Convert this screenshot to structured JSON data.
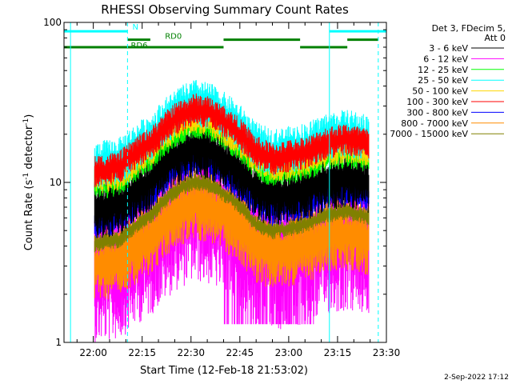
{
  "chart_data": {
    "type": "line",
    "title": "RHESSI Observing Summary Count Rates",
    "xlabel": "Start Time (12-Feb-18 21:53:02)",
    "ylabel_parts": [
      "Count Rate (s",
      "-1",
      " detector",
      "-1",
      ")"
    ],
    "y_scale": "log",
    "ylim": [
      1,
      100
    ],
    "xlim_minutes": [
      -2,
      97
    ],
    "x_ticks": [
      {
        "label": "22:00",
        "min": 7
      },
      {
        "label": "22:15",
        "min": 22
      },
      {
        "label": "22:30",
        "min": 37
      },
      {
        "label": "22:45",
        "min": 52
      },
      {
        "label": "23:00",
        "min": 67
      },
      {
        "label": "23:15",
        "min": 82
      },
      {
        "label": "23:30",
        "min": 97
      }
    ],
    "y_ticks": [
      {
        "label": "1",
        "value": 1
      },
      {
        "label": "10",
        "value": 10
      },
      {
        "label": "100",
        "value": 100
      }
    ],
    "legend_header": [
      "Det 3, FDecim 5,",
      "Att 0"
    ],
    "legend_placement": "right, outside",
    "series": [
      {
        "name": "3 - 6 keV",
        "color": "#000000",
        "mean": 9.0,
        "spread": 1.4
      },
      {
        "name": "6 - 12 keV",
        "color": "#ff00ff",
        "mean": 3.6,
        "spread": 2.2
      },
      {
        "name": "12 - 25 keV",
        "color": "#00ff00",
        "mean": 13.0,
        "spread": 1.2
      },
      {
        "name": "25 - 50 keV",
        "color": "#00ffff",
        "mean": 17.0,
        "spread": 1.3
      },
      {
        "name": "50 - 100 keV",
        "color": "#ffd700",
        "mean": 14.0,
        "spread": 1.2
      },
      {
        "name": "100 - 300 keV",
        "color": "#ff0000",
        "mean": 15.5,
        "spread": 1.2
      },
      {
        "name": "300 - 800 keV",
        "color": "#0000ff",
        "mean": 7.5,
        "spread": 1.2
      },
      {
        "name": "800 - 7000 keV",
        "color": "#ff8c00",
        "mean": 4.0,
        "spread": 1.5
      },
      {
        "name": "7000 - 15000 keV",
        "color": "#808000",
        "mean": 5.5,
        "spread": 1.1
      }
    ],
    "data_start_min": 7.4,
    "data_end_min": 91.6,
    "profile": {
      "x_min": [
        7.4,
        15,
        25,
        32,
        38,
        43,
        50,
        57,
        62,
        68,
        73,
        79,
        85,
        91.6
      ],
      "factor": [
        0.75,
        0.8,
        1.15,
        1.6,
        1.85,
        1.75,
        1.4,
        1.0,
        0.9,
        0.95,
        1.0,
        1.15,
        1.2,
        1.1
      ]
    },
    "spike": {
      "series": "25 - 50 keV",
      "min": 37.5,
      "value": 37
    },
    "gaps": [
      {
        "series": "6 - 12 keV",
        "from_min": 47,
        "to_min": 75,
        "low": 1.3
      },
      {
        "series": "800 - 7000 keV",
        "from_min": 7.4,
        "to_min": 16,
        "low": 2.3
      }
    ],
    "annotations": {
      "flag_lines": [
        {
          "label": "N",
          "color": "#00ffff",
          "value": 88,
          "segments": [
            [
              -2,
              17.5
            ],
            [
              79.5,
              97
            ]
          ]
        },
        {
          "label": "RD0",
          "color": "#008000",
          "value": 78,
          "segments": [
            [
              17.5,
              24.5
            ],
            [
              47,
              70.5
            ],
            [
              85,
              94.5
            ]
          ]
        },
        {
          "label": "RD6",
          "color": "#008000",
          "value": 70,
          "segments": [
            [
              -2,
              47
            ],
            [
              70.5,
              85
            ]
          ]
        }
      ],
      "labels": [
        {
          "text": "N",
          "min": 19,
          "value": 90,
          "color": "#00ffff"
        },
        {
          "text": "RD0",
          "min": 29,
          "value": 79,
          "color": "#008000"
        },
        {
          "text": "RD6",
          "min": 18.5,
          "value": 69,
          "color": "#008000"
        }
      ],
      "vlines": [
        {
          "min": 0,
          "color": "#00ffff",
          "dash": false
        },
        {
          "min": 17.5,
          "color": "#00ffff",
          "dash": true
        },
        {
          "min": 79.5,
          "color": "#00ffff",
          "dash": false
        },
        {
          "min": 94.5,
          "color": "#00ffff",
          "dash": true
        }
      ]
    },
    "grid": false
  },
  "footer": {
    "date": "2-Sep-2022 17:12"
  }
}
